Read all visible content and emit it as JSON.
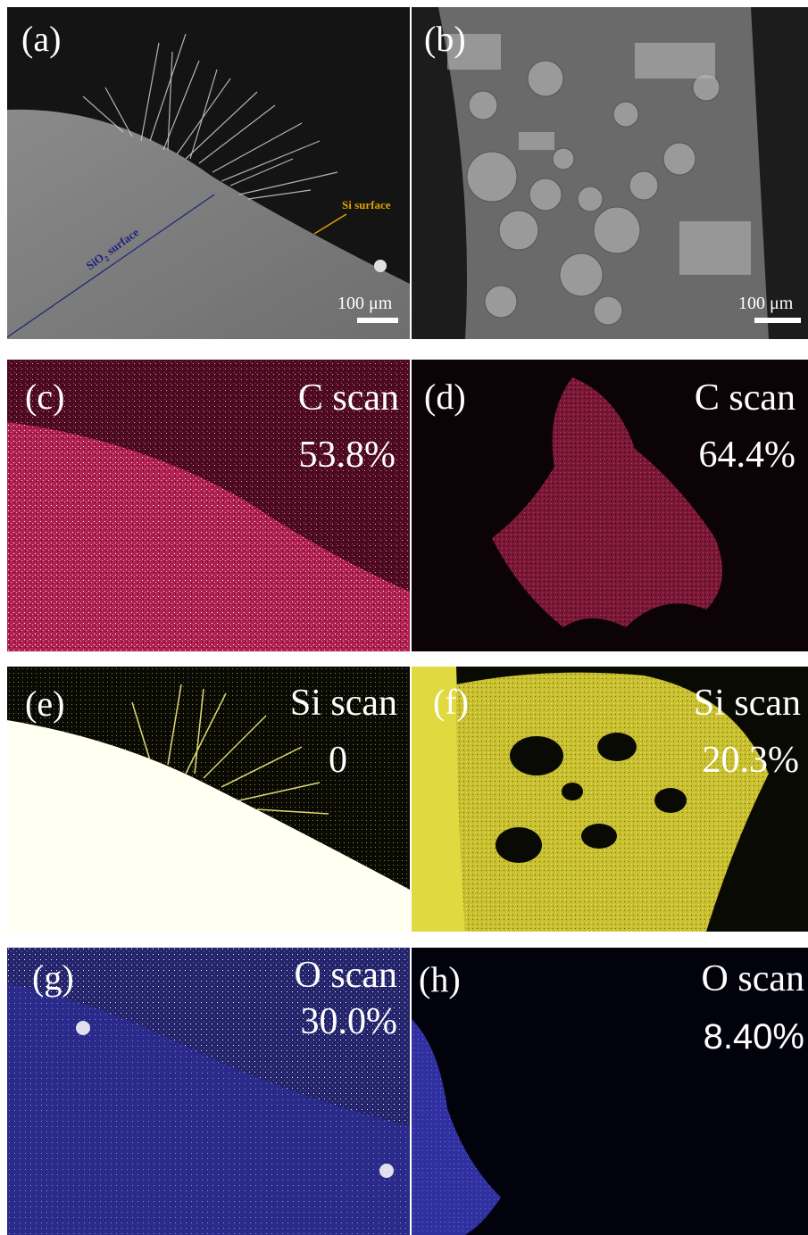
{
  "panels": {
    "a": {
      "label": "(a)",
      "scale_bar": "100 μm",
      "si_annotation": "Si surface",
      "sio2_annotation_main": "SiO",
      "sio2_annotation_sub": "2",
      "sio2_annotation_rest": " surface"
    },
    "b": {
      "label": "(b)",
      "scale_bar": "100 μm"
    },
    "c": {
      "label": "(c)",
      "scan": "C scan",
      "percent": "53.8%"
    },
    "d": {
      "label": "(d)",
      "scan": "C scan",
      "percent": "64.4%"
    },
    "e": {
      "label": "(e)",
      "scan": "Si scan",
      "percent": "0"
    },
    "f": {
      "label": "(f)",
      "scan": "Si scan",
      "percent": "20.3%"
    },
    "g": {
      "label": "(g)",
      "scan": "O scan",
      "percent": "30.0%"
    },
    "h": {
      "label": "(h)",
      "scan": "O scan",
      "percent": "8.40%"
    }
  },
  "colors": {
    "carbon": "#d0305a",
    "silicon": "#e8e43a",
    "oxygen": "#2a2a9a",
    "annotation_si": "#e0a000",
    "annotation_sio2": "#1a237e"
  }
}
